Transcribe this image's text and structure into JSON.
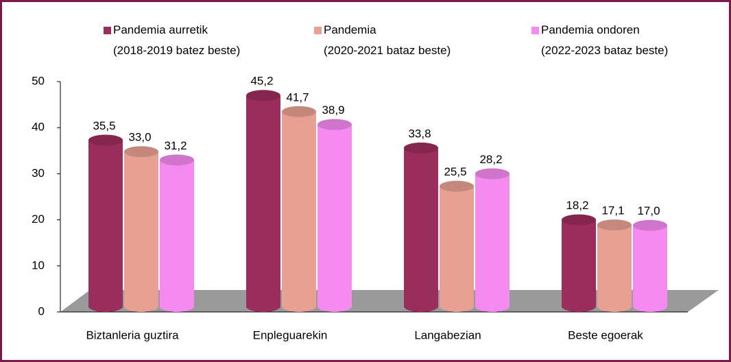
{
  "chart_data": {
    "type": "bar3d",
    "categories": [
      "Biztanleria guztira",
      "Enpleguarekin",
      "Langabezian",
      "Beste egoerak"
    ],
    "series": [
      {
        "name": "Pandemia aurretik\n(2018-2019 batez beste)",
        "color": "#9b2d5c",
        "values": [
          35.5,
          45.2,
          33.8,
          18.2
        ],
        "value_labels": [
          "35,5",
          "45,2",
          "33,8",
          "18,2"
        ]
      },
      {
        "name": "Pandemia\n(2020-2021 bataz beste)",
        "color": "#e8a093",
        "values": [
          33.0,
          41.7,
          25.5,
          17.1
        ],
        "value_labels": [
          "33,0",
          "41,7",
          "25,5",
          "17,1"
        ]
      },
      {
        "name": "Pandemia ondoren\n(2022-2023 bataz beste)",
        "color": "#f58af0",
        "values": [
          31.2,
          38.9,
          28.2,
          17.0
        ],
        "value_labels": [
          "31,2",
          "38,9",
          "28,2",
          "17,0"
        ]
      }
    ],
    "ylim": [
      0,
      50
    ],
    "yticks": [
      0,
      10,
      20,
      30,
      40,
      50
    ],
    "legend": "top"
  }
}
